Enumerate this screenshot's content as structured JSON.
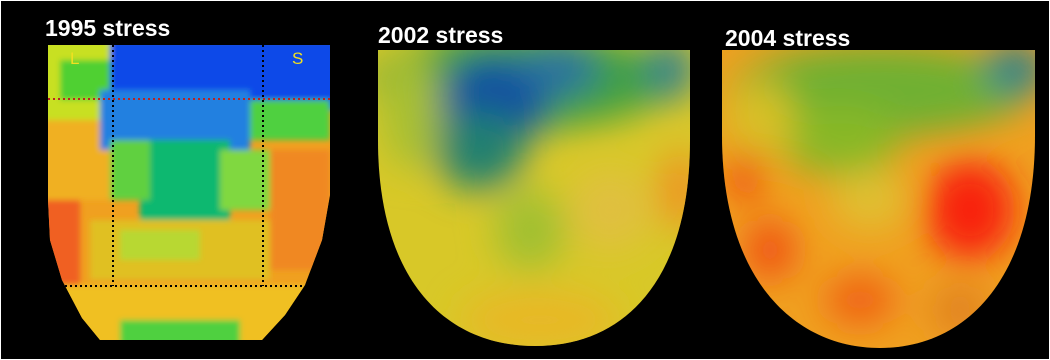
{
  "panels": [
    {
      "title": "1995 stress",
      "left_label": "L",
      "right_label": "S"
    },
    {
      "title": "2002 stress"
    },
    {
      "title": "2004 stress"
    }
  ]
}
